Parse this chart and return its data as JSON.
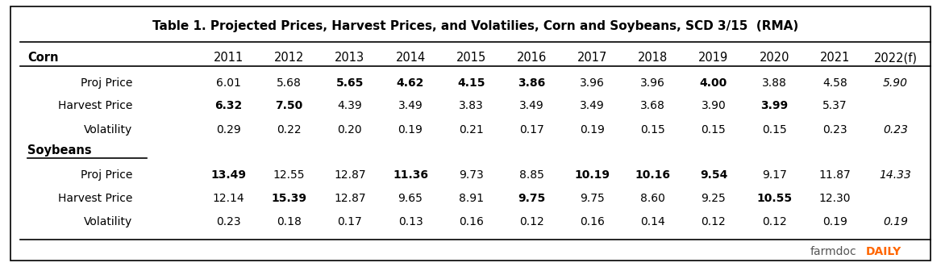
{
  "title": "Table 1. Projected Prices, Harvest Prices, and Volatilies, Corn and Soybeans, SCD 3/15  (RMA)",
  "columns": [
    "",
    "2011",
    "2012",
    "2013",
    "2014",
    "2015",
    "2016",
    "2017",
    "2018",
    "2019",
    "2020",
    "2021",
    "2022(f)"
  ],
  "corn_header": "Corn",
  "corn_rows": [
    {
      "label": "Proj Price",
      "values": [
        "6.01",
        "5.68",
        "5.65",
        "4.62",
        "4.15",
        "3.86",
        "3.96",
        "3.96",
        "4.00",
        "3.88",
        "4.58",
        "5.90"
      ],
      "bold_indices": [
        2,
        3,
        4,
        5,
        8
      ],
      "italic_indices": [
        11
      ]
    },
    {
      "label": "Harvest Price",
      "values": [
        "6.32",
        "7.50",
        "4.39",
        "3.49",
        "3.83",
        "3.49",
        "3.49",
        "3.68",
        "3.90",
        "3.99",
        "5.37",
        ""
      ],
      "bold_indices": [
        0,
        1,
        9
      ],
      "italic_indices": []
    },
    {
      "label": "Volatility",
      "values": [
        "0.29",
        "0.22",
        "0.20",
        "0.19",
        "0.21",
        "0.17",
        "0.19",
        "0.15",
        "0.15",
        "0.15",
        "0.23",
        "0.23"
      ],
      "bold_indices": [],
      "italic_indices": [
        11
      ]
    }
  ],
  "soybeans_header": "Soybeans",
  "soybean_rows": [
    {
      "label": "Proj Price",
      "values": [
        "13.49",
        "12.55",
        "12.87",
        "11.36",
        "9.73",
        "8.85",
        "10.19",
        "10.16",
        "9.54",
        "9.17",
        "11.87",
        "14.33"
      ],
      "bold_indices": [
        0,
        3,
        6,
        7,
        8
      ],
      "italic_indices": [
        11
      ]
    },
    {
      "label": "Harvest Price",
      "values": [
        "12.14",
        "15.39",
        "12.87",
        "9.65",
        "8.91",
        "9.75",
        "9.75",
        "8.60",
        "9.25",
        "10.55",
        "12.30",
        ""
      ],
      "bold_indices": [
        1,
        5,
        9
      ],
      "italic_indices": []
    },
    {
      "label": "Volatility",
      "values": [
        "0.23",
        "0.18",
        "0.17",
        "0.13",
        "0.16",
        "0.12",
        "0.16",
        "0.14",
        "0.12",
        "0.12",
        "0.19",
        "0.19"
      ],
      "bold_indices": [],
      "italic_indices": [
        11
      ]
    }
  ],
  "farmdoc_normal": "farmdoc",
  "farmdoc_bold": "DAILY",
  "farmdoc_color_normal": "#555555",
  "farmdoc_color_bold": "#FF6600",
  "background_color": "#ffffff",
  "border_color": "#000000",
  "title_fontsize": 11,
  "header_fontsize": 10.5,
  "cell_fontsize": 10
}
